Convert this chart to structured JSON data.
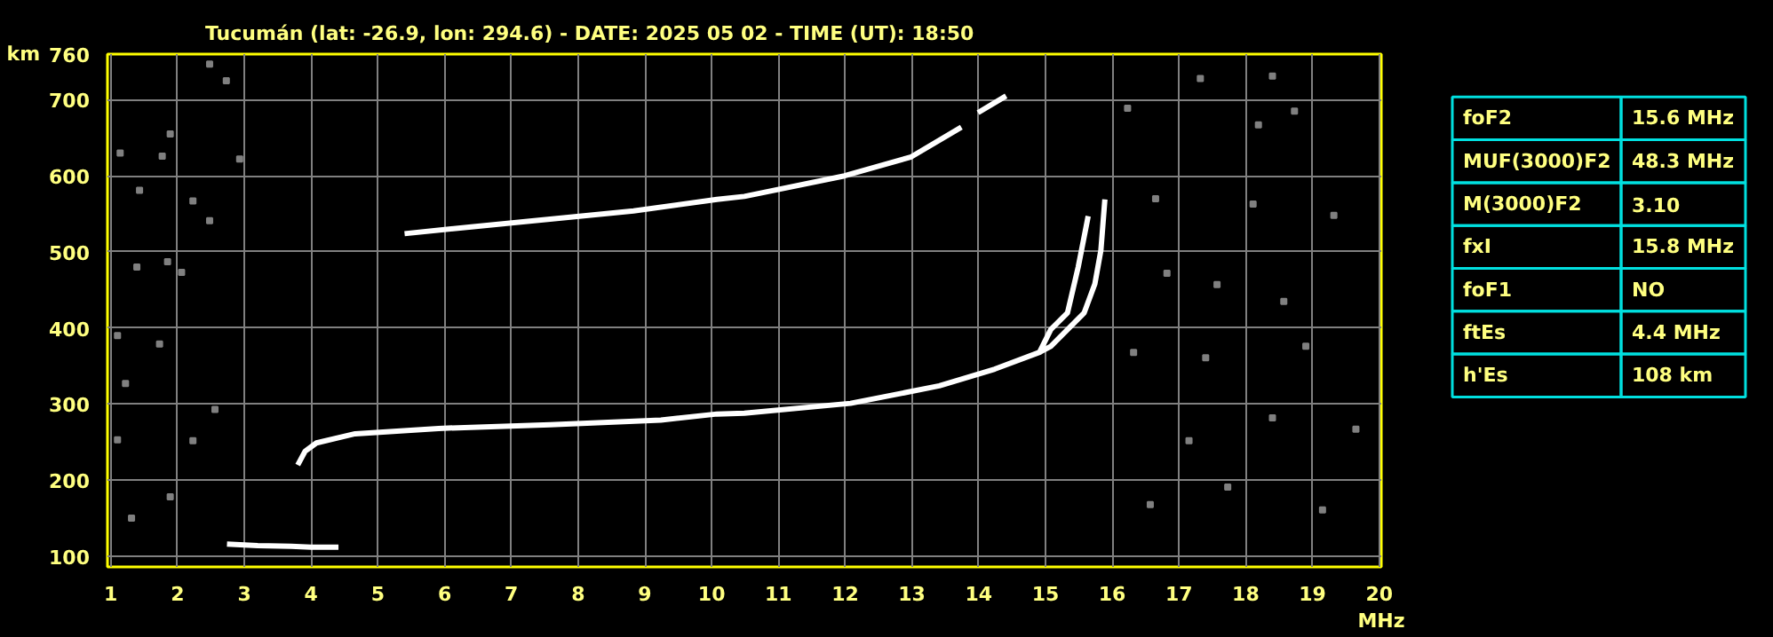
{
  "chart_data": [
    {
      "type": "line",
      "title": "Tucumán (lat: -26.9, lon: 294.6) - DATE: 2025 05 02 - TIME (UT): 18:50",
      "xlabel": "MHz",
      "ylabel": "km",
      "xlim": [
        0.95,
        20.03
      ],
      "ylim": [
        86,
        760
      ],
      "xticks": [
        1,
        2,
        3,
        4,
        5,
        6,
        7,
        8,
        9,
        10,
        11,
        12,
        13,
        14,
        15,
        16,
        17,
        18,
        19,
        20
      ],
      "yticks": [
        100,
        200,
        300,
        400,
        500,
        600,
        700,
        760
      ],
      "grid": true,
      "legend": false,
      "series": [
        {
          "type": "line",
          "color": "#ffffff",
          "x": [
            2.74,
            3.2,
            3.7,
            4.0,
            4.41
          ],
          "values": [
            116,
            114,
            113,
            112,
            112
          ]
        },
        {
          "type": "line",
          "color": "#ffffff",
          "x": [
            3.8,
            3.91,
            4.08,
            4.66,
            5.91,
            7.58,
            9.24,
            10.08,
            10.49,
            12.08,
            13.41,
            14.24,
            14.91,
            15.08,
            15.33,
            15.49,
            15.64
          ],
          "values": [
            220,
            238,
            249,
            261,
            268,
            273,
            279,
            287,
            288,
            301,
            324,
            346,
            368,
            398,
            420,
            480,
            547
          ]
        },
        {
          "type": "line",
          "color": "#ffffff",
          "x": [
            14.91,
            15.08,
            15.58,
            15.74,
            15.83,
            15.89
          ],
          "values": [
            368,
            376,
            420,
            458,
            502,
            569
          ]
        },
        {
          "type": "line",
          "color": "#ffffff",
          "x": [
            5.4,
            6.4,
            7.58,
            8.83,
            10.08,
            10.49,
            11.99,
            12.99,
            13.74,
            13.85,
            13.99,
            14.41
          ],
          "values": [
            524,
            533,
            543,
            554,
            569,
            573,
            600,
            625,
            664,
            null,
            683,
            705
          ]
        },
        {
          "type": "scatter",
          "color": "#808080",
          "marker": "square",
          "x": [
            1.14,
            1.43,
            1.77,
            1.89,
            2.23,
            2.48,
            2.06,
            1.39,
            1.1,
            1.73,
            1.22,
            2.23,
            2.56,
            1.31,
            1.89,
            2.73,
            2.48,
            2.93,
            1.1,
            1.85,
            16.23,
            17.32,
            18.4,
            18.73,
            18.19,
            16.65,
            18.11,
            19.32,
            16.82,
            17.57,
            18.57,
            16.32,
            17.4,
            18.9,
            18.4,
            17.15,
            19.65,
            16.57,
            17.73,
            19.15
          ],
          "values": [
            630,
            581,
            626,
            655,
            567,
            541,
            473,
            480,
            390,
            379,
            327,
            252,
            293,
            150,
            178,
            725,
            747,
            622,
            253,
            487,
            689,
            728,
            731,
            685,
            667,
            570,
            563,
            548,
            472,
            457,
            435,
            368,
            361,
            376,
            282,
            252,
            267,
            168,
            191,
            161
          ]
        }
      ]
    },
    {
      "type": "other",
      "annotations": [
        "foF2",
        "15.6 MHz",
        "MUF(3000)F2",
        "48.3 MHz",
        "M(3000)F2",
        "3.10",
        "fxI",
        "15.8 MHz",
        "foF1",
        "NO",
        "ftEs",
        "4.4 MHz",
        "h'Es",
        "108 km"
      ]
    }
  ]
}
